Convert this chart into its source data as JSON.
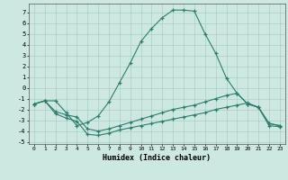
{
  "xlabel": "Humidex (Indice chaleur)",
  "xlim": [
    -0.5,
    23.5
  ],
  "ylim": [
    -5.2,
    7.8
  ],
  "yticks": [
    -5,
    -4,
    -3,
    -2,
    -1,
    0,
    1,
    2,
    3,
    4,
    5,
    6,
    7
  ],
  "xticks": [
    0,
    1,
    2,
    3,
    4,
    5,
    6,
    7,
    8,
    9,
    10,
    11,
    12,
    13,
    14,
    15,
    16,
    17,
    18,
    19,
    20,
    21,
    22,
    23
  ],
  "line_color": "#2d7d6e",
  "bg_color": "#cce8e0",
  "grid_color": "#aacfc7",
  "series1": {
    "x": [
      0,
      1,
      2,
      3,
      4,
      5,
      6,
      7,
      8,
      9,
      10,
      11,
      12,
      13,
      14,
      15,
      16,
      17,
      18,
      19,
      20,
      21,
      22,
      23
    ],
    "y": [
      -1.5,
      -1.2,
      -1.2,
      -2.3,
      -3.5,
      -3.2,
      -2.6,
      -1.3,
      0.5,
      2.3,
      4.3,
      5.5,
      6.5,
      7.2,
      7.2,
      7.1,
      5.0,
      3.2,
      0.9,
      -0.5,
      -1.5,
      -1.8,
      -3.3,
      -3.5
    ]
  },
  "series2": {
    "x": [
      0,
      1,
      2,
      3,
      4,
      5,
      6,
      7,
      8,
      9,
      10,
      11,
      12,
      13,
      14,
      15,
      16,
      17,
      18,
      19,
      20,
      21,
      22,
      23
    ],
    "y": [
      -1.5,
      -1.2,
      -2.2,
      -2.5,
      -2.7,
      -3.8,
      -4.0,
      -3.8,
      -3.5,
      -3.2,
      -2.9,
      -2.6,
      -2.3,
      -2.0,
      -1.8,
      -1.6,
      -1.3,
      -1.0,
      -0.7,
      -0.5,
      -1.5,
      -1.8,
      -3.3,
      -3.5
    ]
  },
  "series3": {
    "x": [
      0,
      1,
      2,
      3,
      4,
      5,
      6,
      7,
      8,
      9,
      10,
      11,
      12,
      13,
      14,
      15,
      16,
      17,
      18,
      19,
      20,
      21,
      22,
      23
    ],
    "y": [
      -1.5,
      -1.2,
      -2.4,
      -2.8,
      -3.1,
      -4.3,
      -4.4,
      -4.2,
      -3.9,
      -3.7,
      -3.5,
      -3.3,
      -3.1,
      -2.9,
      -2.7,
      -2.5,
      -2.3,
      -2.0,
      -1.8,
      -1.6,
      -1.4,
      -1.8,
      -3.5,
      -3.6
    ]
  }
}
